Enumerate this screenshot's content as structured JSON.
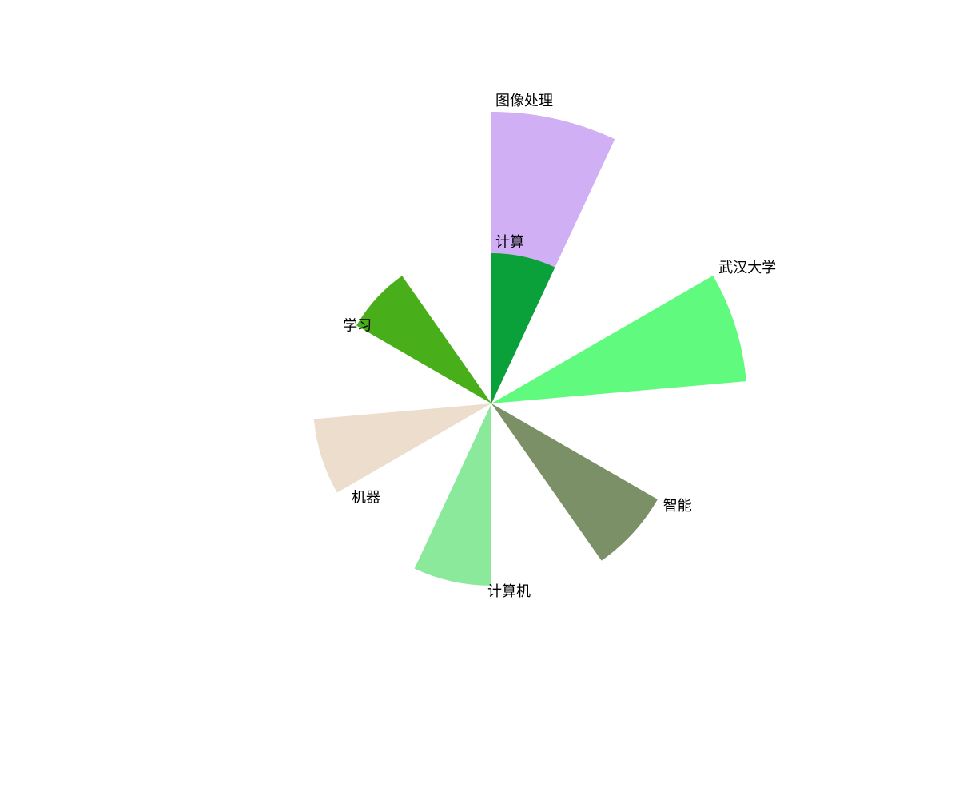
{
  "chart_data": {
    "type": "rose",
    "start_angle_deg": 90,
    "direction": "clockwise",
    "slices": [
      {
        "label": "图像处理",
        "value": 365,
        "start_deg": 0,
        "end_deg": 25,
        "color": "#d1aff4"
      },
      {
        "label": "计算",
        "value": 188,
        "start_deg": 0,
        "end_deg": 25,
        "color": "#0aa03a"
      },
      {
        "label": "武汉大学",
        "value": 320,
        "start_deg": 60,
        "end_deg": 85,
        "color": "#60fa7e"
      },
      {
        "label": "智能",
        "value": 240,
        "start_deg": 120,
        "end_deg": 145,
        "color": "#7b9066"
      },
      {
        "label": "计算机",
        "value": 228,
        "start_deg": 180,
        "end_deg": 205,
        "color": "#8be99c"
      },
      {
        "label": "机器",
        "value": 223,
        "start_deg": 240,
        "end_deg": 265,
        "color": "#ecddcd"
      },
      {
        "label": "学习",
        "value": 195,
        "start_deg": 300,
        "end_deg": 325,
        "color": "#48ae19"
      }
    ]
  }
}
